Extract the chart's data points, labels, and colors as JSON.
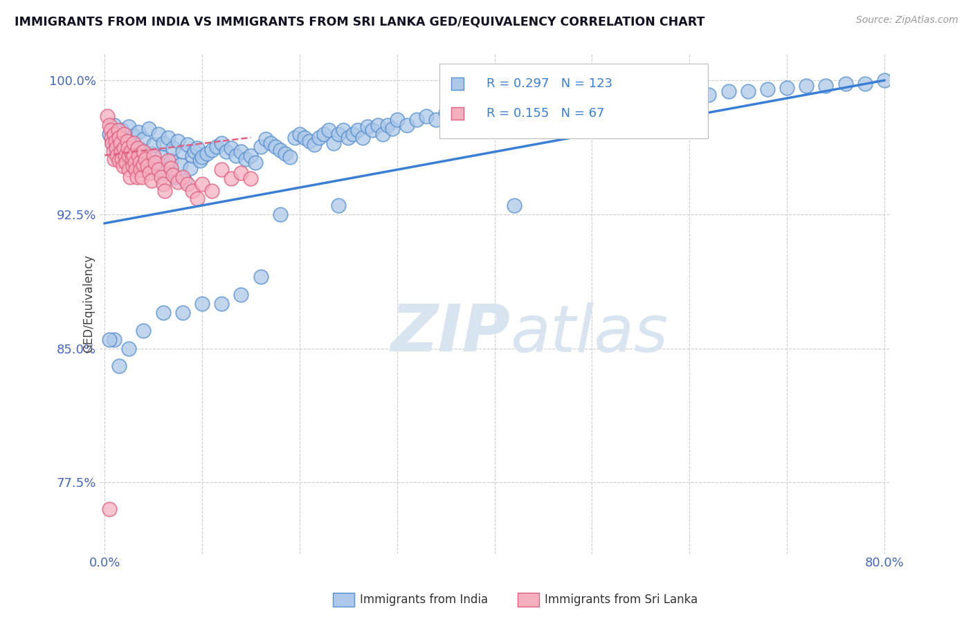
{
  "title": "IMMIGRANTS FROM INDIA VS IMMIGRANTS FROM SRI LANKA GED/EQUIVALENCY CORRELATION CHART",
  "source": "Source: ZipAtlas.com",
  "ylabel": "GED/Equivalency",
  "legend_india": "Immigrants from India",
  "legend_srilanka": "Immigrants from Sri Lanka",
  "R_india": 0.297,
  "N_india": 123,
  "R_srilanka": 0.155,
  "N_srilanka": 67,
  "xlim": [
    -0.005,
    0.805
  ],
  "ylim": [
    0.735,
    1.015
  ],
  "yticks": [
    0.775,
    0.85,
    0.925,
    1.0
  ],
  "ytick_labels": [
    "77.5%",
    "85.0%",
    "92.5%",
    "100.0%"
  ],
  "color_india": "#adc8e8",
  "color_srilanka": "#f5b0c0",
  "edge_india": "#5590d0",
  "edge_srilanka": "#e06080",
  "trend_color_india": "#3a7fd5",
  "trend_color_srilanka": "#e06080",
  "watermark_color": "#d8e4f0",
  "background_color": "#ffffff",
  "grid_color": "#cccccc",
  "india_x": [
    0.005,
    0.008,
    0.01,
    0.012,
    0.015,
    0.018,
    0.02,
    0.022,
    0.025,
    0.028,
    0.03,
    0.032,
    0.035,
    0.038,
    0.04,
    0.042,
    0.045,
    0.048,
    0.05,
    0.052,
    0.055,
    0.058,
    0.06,
    0.062,
    0.065,
    0.068,
    0.07,
    0.072,
    0.075,
    0.078,
    0.08,
    0.082,
    0.085,
    0.088,
    0.09,
    0.092,
    0.095,
    0.098,
    0.1,
    0.105,
    0.11,
    0.115,
    0.12,
    0.125,
    0.13,
    0.135,
    0.14,
    0.145,
    0.15,
    0.155,
    0.16,
    0.165,
    0.17,
    0.175,
    0.18,
    0.185,
    0.19,
    0.195,
    0.2,
    0.205,
    0.21,
    0.215,
    0.22,
    0.225,
    0.23,
    0.235,
    0.24,
    0.245,
    0.25,
    0.255,
    0.26,
    0.265,
    0.27,
    0.275,
    0.28,
    0.285,
    0.29,
    0.295,
    0.3,
    0.31,
    0.32,
    0.33,
    0.34,
    0.35,
    0.36,
    0.37,
    0.38,
    0.39,
    0.4,
    0.42,
    0.44,
    0.46,
    0.48,
    0.5,
    0.52,
    0.54,
    0.56,
    0.58,
    0.6,
    0.62,
    0.64,
    0.66,
    0.68,
    0.7,
    0.72,
    0.74,
    0.76,
    0.78,
    0.8,
    0.42,
    0.24,
    0.18,
    0.16,
    0.14,
    0.12,
    0.1,
    0.08,
    0.06,
    0.04,
    0.025,
    0.015,
    0.01,
    0.005
  ],
  "india_y": [
    0.97,
    0.965,
    0.975,
    0.96,
    0.968,
    0.972,
    0.966,
    0.958,
    0.974,
    0.963,
    0.969,
    0.955,
    0.971,
    0.961,
    0.967,
    0.953,
    0.973,
    0.959,
    0.964,
    0.95,
    0.97,
    0.957,
    0.965,
    0.948,
    0.968,
    0.955,
    0.962,
    0.946,
    0.966,
    0.953,
    0.96,
    0.944,
    0.964,
    0.951,
    0.958,
    0.96,
    0.962,
    0.955,
    0.957,
    0.959,
    0.961,
    0.963,
    0.965,
    0.96,
    0.962,
    0.958,
    0.96,
    0.956,
    0.958,
    0.954,
    0.963,
    0.967,
    0.965,
    0.963,
    0.961,
    0.959,
    0.957,
    0.968,
    0.97,
    0.968,
    0.966,
    0.964,
    0.968,
    0.97,
    0.972,
    0.965,
    0.97,
    0.972,
    0.968,
    0.97,
    0.972,
    0.968,
    0.974,
    0.972,
    0.975,
    0.97,
    0.975,
    0.973,
    0.978,
    0.975,
    0.978,
    0.98,
    0.978,
    0.982,
    0.98,
    0.982,
    0.985,
    0.98,
    0.985,
    0.987,
    0.988,
    0.988,
    0.99,
    0.99,
    0.992,
    0.99,
    0.993,
    0.992,
    0.994,
    0.992,
    0.994,
    0.994,
    0.995,
    0.996,
    0.997,
    0.997,
    0.998,
    0.998,
    1.0,
    0.93,
    0.93,
    0.925,
    0.89,
    0.88,
    0.875,
    0.875,
    0.87,
    0.87,
    0.86,
    0.85,
    0.84,
    0.855,
    0.855
  ],
  "srilanka_x": [
    0.003,
    0.005,
    0.006,
    0.007,
    0.008,
    0.009,
    0.01,
    0.01,
    0.011,
    0.012,
    0.013,
    0.014,
    0.015,
    0.015,
    0.016,
    0.017,
    0.018,
    0.019,
    0.02,
    0.02,
    0.021,
    0.022,
    0.023,
    0.024,
    0.025,
    0.025,
    0.026,
    0.027,
    0.028,
    0.029,
    0.03,
    0.03,
    0.031,
    0.032,
    0.033,
    0.034,
    0.035,
    0.036,
    0.037,
    0.038,
    0.04,
    0.04,
    0.042,
    0.044,
    0.046,
    0.048,
    0.05,
    0.052,
    0.055,
    0.058,
    0.06,
    0.062,
    0.065,
    0.068,
    0.07,
    0.075,
    0.08,
    0.085,
    0.09,
    0.095,
    0.1,
    0.11,
    0.12,
    0.13,
    0.14,
    0.15,
    0.005
  ],
  "srilanka_y": [
    0.98,
    0.975,
    0.972,
    0.968,
    0.965,
    0.96,
    0.956,
    0.97,
    0.966,
    0.962,
    0.958,
    0.972,
    0.968,
    0.955,
    0.965,
    0.96,
    0.956,
    0.952,
    0.97,
    0.962,
    0.958,
    0.954,
    0.966,
    0.962,
    0.958,
    0.95,
    0.946,
    0.96,
    0.956,
    0.952,
    0.965,
    0.958,
    0.954,
    0.95,
    0.946,
    0.962,
    0.958,
    0.954,
    0.95,
    0.946,
    0.96,
    0.953,
    0.956,
    0.952,
    0.948,
    0.944,
    0.958,
    0.954,
    0.95,
    0.946,
    0.942,
    0.938,
    0.955,
    0.951,
    0.947,
    0.943,
    0.946,
    0.942,
    0.938,
    0.934,
    0.942,
    0.938,
    0.95,
    0.945,
    0.948,
    0.945,
    0.76
  ],
  "trend_india_x0": 0.0,
  "trend_india_y0": 0.92,
  "trend_india_x1": 0.8,
  "trend_india_y1": 1.0,
  "trend_sl_x0": 0.0,
  "trend_sl_y0": 0.958,
  "trend_sl_x1": 0.15,
  "trend_sl_y1": 0.968
}
